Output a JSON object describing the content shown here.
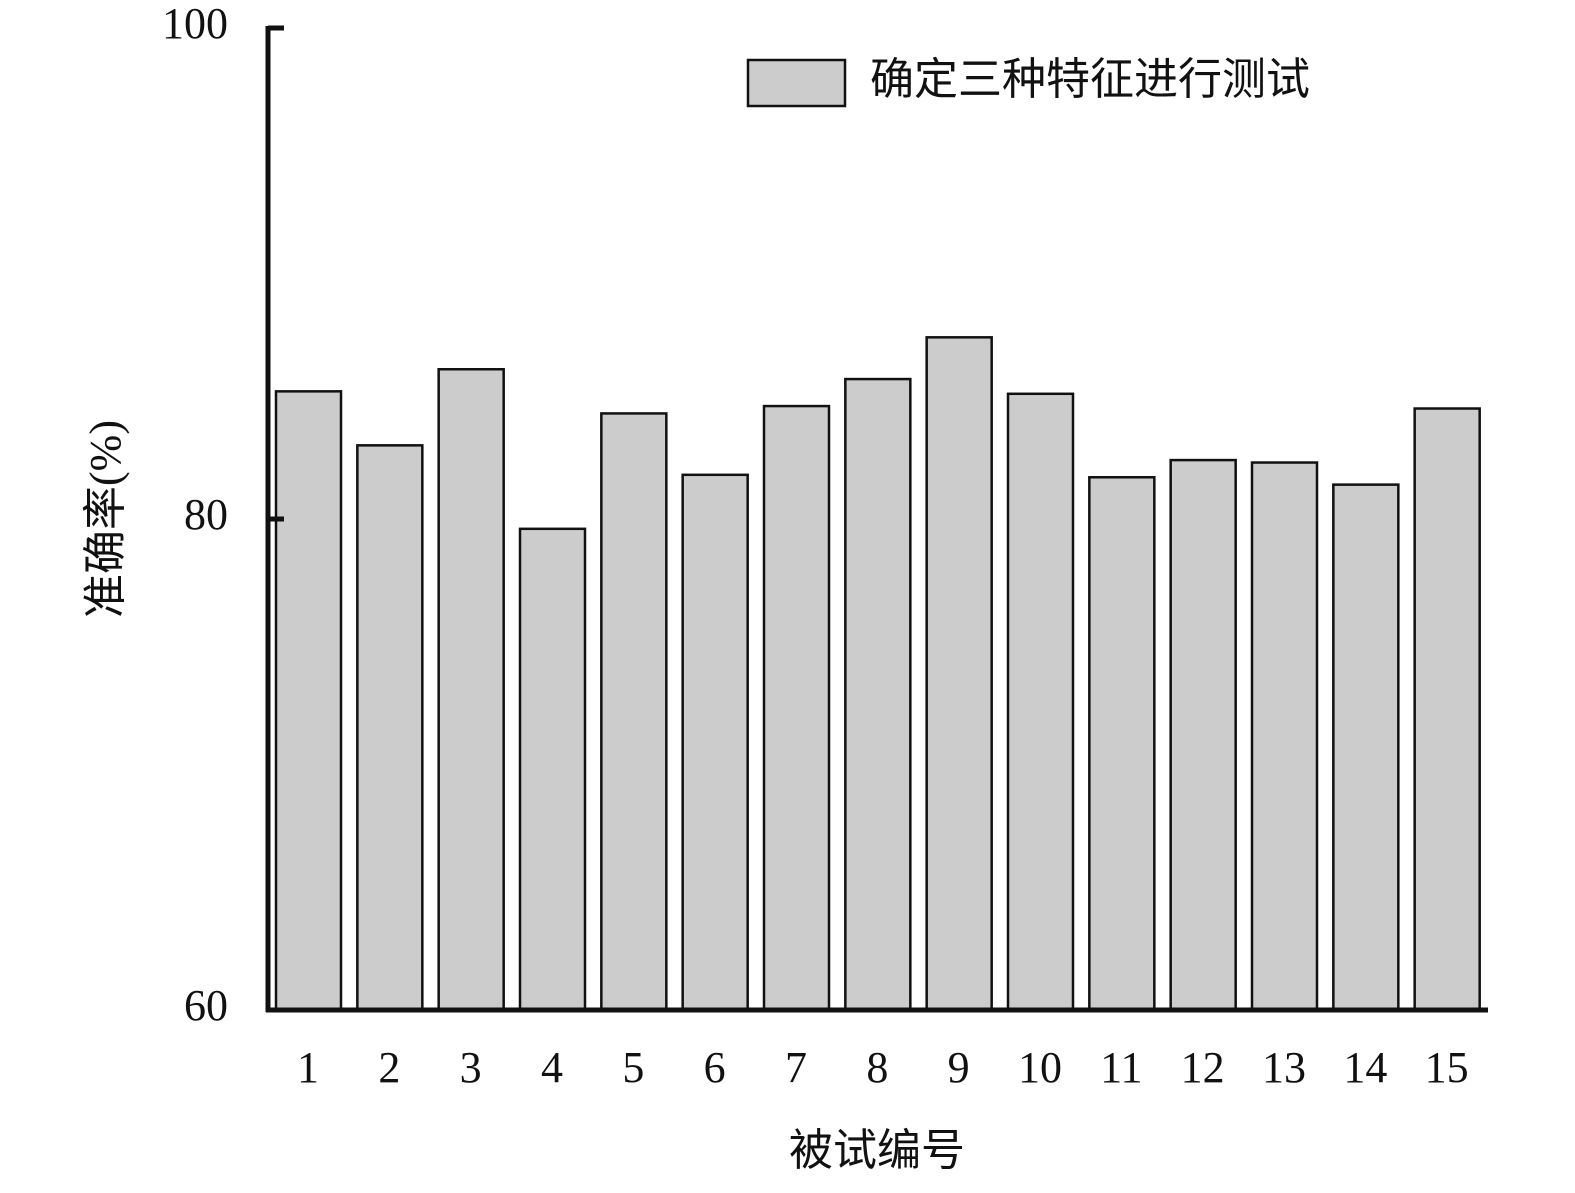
{
  "chart_data": {
    "type": "bar",
    "x_label": "被试编号",
    "y_label": "准确率(%)",
    "categories": [
      "1",
      "2",
      "3",
      "4",
      "5",
      "6",
      "7",
      "8",
      "9",
      "10",
      "11",
      "12",
      "13",
      "14",
      "15"
    ],
    "series": [
      {
        "name": "确定三种特征进行测试",
        "color": "#cccccc",
        "values": [
          85.2,
          83.0,
          86.1,
          79.6,
          84.3,
          81.8,
          84.6,
          85.7,
          87.4,
          85.1,
          81.7,
          82.4,
          82.3,
          81.4,
          84.5
        ]
      }
    ],
    "ylim": [
      60,
      100
    ],
    "yticks": [
      60,
      80,
      100
    ],
    "legend": "upper right",
    "grid": false
  }
}
